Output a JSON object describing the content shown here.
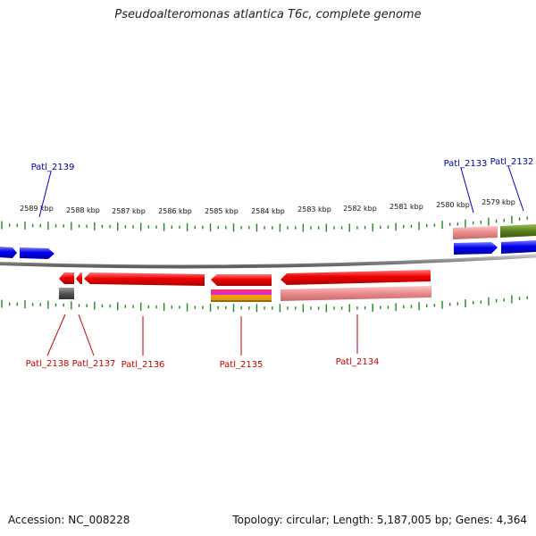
{
  "title": "Pseudoalteromonas atlantica T6c, complete genome",
  "footer": {
    "accession": "Accession: NC_008228",
    "summary": "Topology: circular; Length: 5,187,005 bp; Genes: 4,364"
  },
  "colors": {
    "forward_gene": "#0000ee",
    "reverse_gene": "#ee0000",
    "rna_pink": "#e98a8a",
    "olive": "#5b7f1f",
    "backbone": "#8a8a8a",
    "ticks": "#1f8a1f",
    "label_forward": "#0000aa",
    "label_reverse": "#cc0000"
  },
  "axis": {
    "unit": "kbp",
    "ticks": [
      {
        "label": "2589 kbp"
      },
      {
        "label": "2588 kbp"
      },
      {
        "label": "2587 kbp"
      },
      {
        "label": "2586 kbp"
      },
      {
        "label": "2585 kbp"
      },
      {
        "label": "2584 kbp"
      },
      {
        "label": "2583 kbp"
      },
      {
        "label": "2582 kbp"
      },
      {
        "label": "2581 kbp"
      },
      {
        "label": "2580 kbp"
      },
      {
        "label": "2579 kbp"
      }
    ]
  },
  "genes": [
    {
      "name": "Patl_2139",
      "strand": "+"
    },
    {
      "name": "Patl_2138",
      "strand": "-"
    },
    {
      "name": "Patl_2137",
      "strand": "-"
    },
    {
      "name": "Patl_2136",
      "strand": "-"
    },
    {
      "name": "Patl_2135",
      "strand": "-"
    },
    {
      "name": "Patl_2134",
      "strand": "-"
    },
    {
      "name": "Patl_2133",
      "strand": "+"
    },
    {
      "name": "Patl_2132",
      "strand": "+"
    }
  ]
}
